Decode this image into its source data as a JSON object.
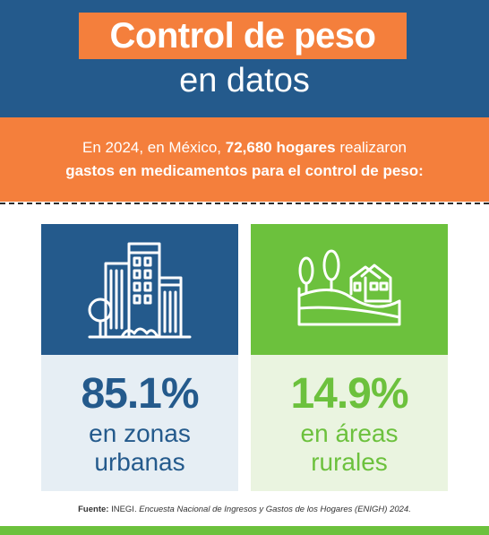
{
  "header": {
    "title_line1": "Control de peso",
    "title_line2": "en datos"
  },
  "intro": {
    "part1": "En 2024, en México,",
    "bold1": "72,680 hogares",
    "part2": "realizaron",
    "bold2": "gastos en medicamentos para el control de peso:"
  },
  "cards": [
    {
      "percent": "85.1%",
      "label_line1": "en zonas",
      "label_line2": "urbanas",
      "icon": "city-buildings-icon"
    },
    {
      "percent": "14.9%",
      "label_line1": "en áreas",
      "label_line2": "rurales",
      "icon": "rural-house-icon"
    }
  ],
  "source": {
    "label": "Fuente:",
    "org": "INEGI.",
    "title": "Encuesta Nacional de Ingresos y Gastos de los Hogares (ENIGH) 2024."
  },
  "colors": {
    "blue": "#245a8c",
    "orange": "#f47f3c",
    "green": "#6cc13d",
    "light_blue": "#e6eef4",
    "light_green": "#eaf4e0"
  }
}
